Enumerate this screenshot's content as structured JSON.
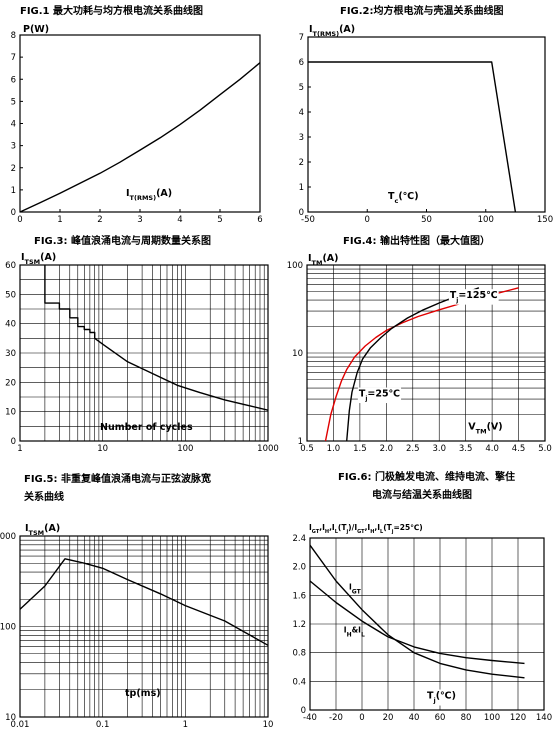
{
  "chart_data": [
    {
      "id": "fig1",
      "type": "line",
      "title": "FIG.1  最大功耗与均方根电流关系曲线图",
      "ylabel": "P(W)",
      "xlabel_main": "I",
      "xlabel_sub": "T(RMS)",
      "xlabel_tail": "(A)",
      "xlim": [
        0,
        6
      ],
      "ylim": [
        0,
        8
      ],
      "xscale": "linear",
      "yscale": "linear",
      "grid": false,
      "xticks": [
        "0",
        "1",
        "2",
        "3",
        "4",
        "5",
        "6"
      ],
      "yticks": [
        "0",
        "1",
        "2",
        "3",
        "4",
        "5",
        "6",
        "7",
        "8"
      ],
      "series": [
        {
          "color": "#000000",
          "x": [
            0,
            0.5,
            1,
            1.5,
            2,
            2.5,
            3,
            3.5,
            4,
            4.5,
            5,
            5.5,
            6
          ],
          "y": [
            0,
            0.42,
            0.85,
            1.3,
            1.75,
            2.25,
            2.8,
            3.35,
            3.95,
            4.6,
            5.3,
            6,
            6.75
          ]
        }
      ]
    },
    {
      "id": "fig2",
      "type": "line",
      "title": "FIG.2:均方根电流与壳温关系曲线图",
      "ylabel_main": "I",
      "ylabel_sub": "T(RMS)",
      "ylabel_tail": "(A)",
      "xlabel_main": "T",
      "xlabel_sub": "c",
      "xlabel_tail": "(℃)",
      "xlim": [
        -50,
        150
      ],
      "ylim": [
        0,
        7
      ],
      "xscale": "linear",
      "yscale": "linear",
      "grid": false,
      "xticks": [
        "-50",
        "0",
        "50",
        "100",
        "150"
      ],
      "yticks": [
        "0",
        "1",
        "2",
        "3",
        "4",
        "5",
        "6",
        "7"
      ],
      "series": [
        {
          "color": "#000000",
          "x": [
            -50,
            105,
            125
          ],
          "y": [
            6,
            6,
            0
          ]
        }
      ]
    },
    {
      "id": "fig3",
      "type": "line",
      "title": "FIG.3:  峰值浪涌电流与周期数量关系图",
      "ylabel_main": "I",
      "ylabel_sub": "TSM",
      "ylabel_tail": "(A)",
      "xlabel": "Number of cycles",
      "xlim": [
        1,
        1000
      ],
      "ylim": [
        0,
        60
      ],
      "xscale": "log",
      "yscale": "linear",
      "grid": true,
      "xticks": [
        "1",
        "10",
        "100",
        "1000"
      ],
      "yticks": [
        "0",
        "10",
        "20",
        "30",
        "40",
        "50",
        "60"
      ],
      "series": [
        {
          "color": "#000000",
          "x": [
            2,
            2,
            3,
            3,
            4,
            4,
            5,
            5,
            6,
            6,
            7,
            7,
            8,
            8,
            10,
            20,
            40,
            80,
            150,
            300,
            600,
            1000
          ],
          "y": [
            60,
            47,
            47,
            45,
            45,
            42,
            42,
            39,
            39,
            38,
            38,
            37,
            37,
            35,
            33,
            27,
            23,
            19,
            16.5,
            14,
            12,
            10.5
          ]
        }
      ]
    },
    {
      "id": "fig4",
      "type": "line",
      "title": "FIG.4:  输出特性图（最大值图）",
      "ylabel_main": "I",
      "ylabel_sub": "TM",
      "ylabel_tail": "(A)",
      "xlabel_main": "V",
      "xlabel_sub": "TM",
      "xlabel_tail": "(V)",
      "xlim": [
        0.5,
        5.0
      ],
      "ylim": [
        1,
        100
      ],
      "xscale": "linear",
      "yscale": "log",
      "grid": true,
      "xticks": [
        "0.5",
        "1.0",
        "1.5",
        "2.0",
        "2.5",
        "3.0",
        "3.5",
        "4.0",
        "4.5",
        "5.0"
      ],
      "yticks": [
        "1",
        "10",
        "100"
      ],
      "annotations": [
        {
          "main": "T",
          "sub": "j",
          "tail": "=125℃",
          "x": 3.2,
          "y": 42
        },
        {
          "main": "T",
          "sub": "j",
          "tail": "=25℃",
          "x": 1.48,
          "y": 3.2
        }
      ],
      "series": [
        {
          "name": "Tj=125℃",
          "color": "#e00000",
          "x": [
            0.85,
            0.95,
            1.05,
            1.15,
            1.25,
            1.4,
            1.6,
            1.8,
            2.0,
            2.3,
            2.6,
            3.0,
            3.5,
            4.0,
            4.5
          ],
          "y": [
            1,
            2,
            3.2,
            4.8,
            6.5,
            9,
            12,
            15,
            18,
            22,
            26,
            31,
            38,
            46,
            55
          ]
        },
        {
          "name": "Tj=25℃",
          "color": "#000000",
          "x": [
            1.25,
            1.3,
            1.35,
            1.45,
            1.55,
            1.7,
            1.9,
            2.1,
            2.4,
            2.7,
            3.0,
            3.4,
            3.75
          ],
          "y": [
            1,
            2.2,
            3.6,
            6,
            8.5,
            11.5,
            15,
            19,
            25,
            31,
            37,
            46,
            55
          ]
        }
      ]
    },
    {
      "id": "fig5",
      "type": "line",
      "title_line1": "FIG.5:  非重复峰值浪涌电流与正弦波脉宽",
      "title_line2": "关系曲线",
      "ylabel_main": "I",
      "ylabel_sub": "TSM",
      "ylabel_tail": "(A)",
      "xlabel": "tp(ms)",
      "xlim": [
        0.01,
        10
      ],
      "ylim": [
        10,
        1000
      ],
      "xscale": "log",
      "yscale": "log",
      "grid": true,
      "xticks": [
        "0.01",
        "0.1",
        "1",
        "10"
      ],
      "yticks": [
        "10",
        "100",
        "1000"
      ],
      "series": [
        {
          "color": "#000000",
          "x": [
            0.01,
            0.02,
            0.035,
            0.06,
            0.1,
            0.2,
            0.5,
            1,
            3,
            10
          ],
          "y": [
            155,
            280,
            560,
            500,
            440,
            330,
            230,
            170,
            115,
            62
          ]
        }
      ]
    },
    {
      "id": "fig6",
      "type": "line",
      "title_line1": "FIG.6:  门极触发电流、维持电流、擎住",
      "title_line2": "电流与结温关系曲线图",
      "ylabel": "I_GT,I_H,I_L(T_j)/I_GT,I_H,I_L(T_j=25℃)",
      "ylabel_parts": [
        "I",
        "GT",
        ",I",
        "H",
        ",I",
        "L",
        "(T",
        "j",
        ")/I",
        "GT",
        ",I",
        "H",
        ",I",
        "L",
        "(T",
        "j",
        "=25℃)"
      ],
      "xlabel_main": "T",
      "xlabel_sub": "j",
      "xlabel_tail": "(℃)",
      "xlim": [
        -40,
        140
      ],
      "ylim": [
        0,
        2.4
      ],
      "xscale": "linear",
      "yscale": "linear",
      "grid": true,
      "xticks": [
        "-40",
        "-20",
        "0",
        "20",
        "40",
        "60",
        "80",
        "100",
        "120",
        "140"
      ],
      "yticks": [
        "0",
        "0.4",
        "0.8",
        "1.2",
        "1.6",
        "2.0",
        "2.4"
      ],
      "annotations": [
        {
          "main": "I",
          "sub": "GT",
          "tail": "",
          "x": -10,
          "y": 1.68
        },
        {
          "main": "I",
          "sub": "H",
          "tail": "&I",
          "sub2": "L",
          "x": -14,
          "y": 1.08
        }
      ],
      "series": [
        {
          "name": "IGT",
          "color": "#000000",
          "x": [
            -40,
            -20,
            0,
            20,
            40,
            60,
            80,
            100,
            125
          ],
          "y": [
            2.3,
            1.8,
            1.4,
            1.05,
            0.8,
            0.65,
            0.56,
            0.5,
            0.45
          ]
        },
        {
          "name": "IH&IL",
          "color": "#000000",
          "x": [
            -40,
            -20,
            0,
            20,
            40,
            60,
            80,
            100,
            125
          ],
          "y": [
            1.8,
            1.5,
            1.24,
            1.02,
            0.88,
            0.79,
            0.73,
            0.69,
            0.65
          ]
        }
      ]
    }
  ]
}
